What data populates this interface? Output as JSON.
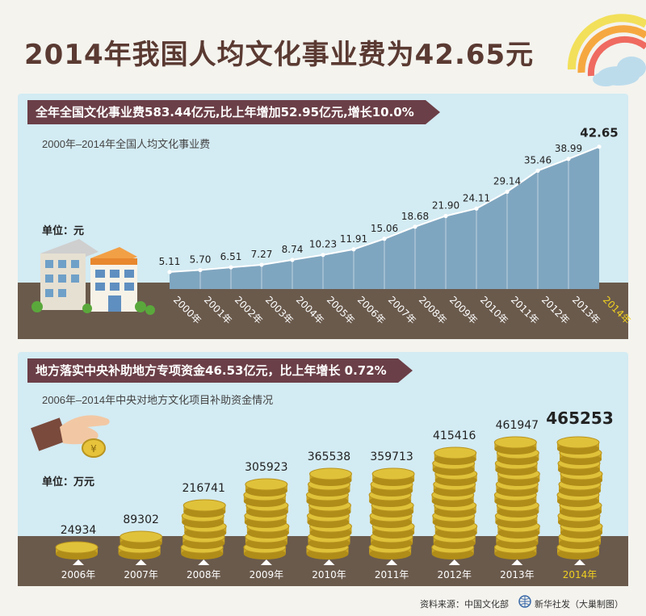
{
  "title": "2014年我国人均文化事业费为42.65元",
  "section1": {
    "banner": "全年全国文化事业费583.44亿元,比上年增加52.95亿元,增长10.0%",
    "subtitle": "2000年–2014年全国人均文化事业费",
    "unit": "单位：元"
  },
  "section2": {
    "banner": "地方落实中央补助地方专项资金46.53亿元，比上年增长 0.72%",
    "subtitle": "2006年–2014年中央对地方文化项目补助资金情况",
    "unit": "单位：万元"
  },
  "footer": {
    "source": "资料来源：中国文化部",
    "agency": "新华社发（大巢制图）"
  },
  "colors": {
    "title": "#5a3a32",
    "banner": "#6b3f47",
    "panel": "#d3ebf3",
    "area": "#7fa6c0",
    "ground": "#6a5a4c",
    "coin": "#e0c23a",
    "highlight": "#f0d020"
  },
  "chart_data": [
    {
      "type": "area",
      "x": [
        "2000年",
        "2001年",
        "2002年",
        "2003年",
        "2004年",
        "2005年",
        "2006年",
        "2007年",
        "2008年",
        "2009年",
        "2010年",
        "2011年",
        "2012年",
        "2013年",
        "2014年"
      ],
      "values": [
        5.11,
        5.7,
        6.51,
        7.27,
        8.74,
        10.23,
        11.91,
        15.06,
        18.68,
        21.9,
        24.11,
        29.14,
        35.46,
        38.99,
        42.65
      ],
      "value_labels": [
        "5.11",
        "5.70",
        "6.51",
        "7.27",
        "8.74",
        "10.23",
        "11.91",
        "15.06",
        "18.68",
        "21.90",
        "24.11",
        "29.14",
        "35.46",
        "38.99",
        "42.65"
      ],
      "highlight": "2014年",
      "ylim": [
        0,
        45
      ]
    },
    {
      "type": "bar",
      "categories": [
        "2006年",
        "2007年",
        "2008年",
        "2009年",
        "2010年",
        "2011年",
        "2012年",
        "2013年",
        "2014年"
      ],
      "values": [
        24934,
        89302,
        216741,
        305923,
        365538,
        359713,
        415416,
        461947,
        465253
      ],
      "value_labels": [
        "24934",
        "89302",
        "216741",
        "305923",
        "365538",
        "359713",
        "415416",
        "461947",
        "465253"
      ],
      "highlight": "2014年",
      "ylim": [
        0,
        500000
      ]
    }
  ]
}
